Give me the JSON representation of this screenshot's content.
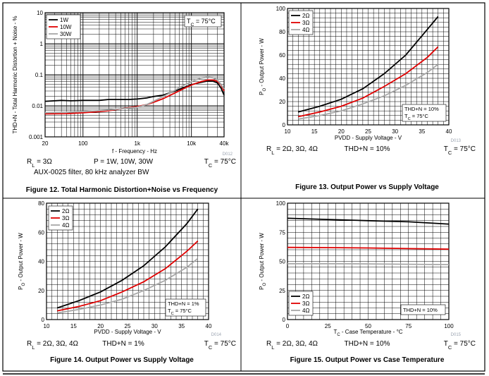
{
  "chart_data": [
    {
      "type": "line",
      "ylabel": "THD+N - Total Harmonic Distortion + Noise - %",
      "xlabel": "f - Frequency - Hz",
      "xscale": "log",
      "yscale": "log",
      "xlim": [
        20,
        40000
      ],
      "ylim": [
        0.001,
        10
      ],
      "xticks": [
        {
          "v": 20,
          "label": "20"
        },
        {
          "v": 100,
          "label": "100"
        },
        {
          "v": 1000,
          "label": "1k"
        },
        {
          "v": 10000,
          "label": "10k"
        },
        {
          "v": 40000,
          "label": "40k"
        }
      ],
      "yticks": [
        {
          "v": 0.001,
          "label": "0.001"
        },
        {
          "v": 0.01,
          "label": "0.01"
        },
        {
          "v": 0.1,
          "label": "0.1"
        },
        {
          "v": 1,
          "label": "1"
        },
        {
          "v": 10,
          "label": "10"
        }
      ],
      "grid": true,
      "legend_position": "top-left",
      "annotation": "TC = 75°C",
      "code": "D012",
      "conditions": {
        "left": "RL = 3Ω",
        "mid": "P = 1W, 10W, 30W",
        "right": "TC = 75°C",
        "line2": "AUX-0025 filter, 80 kHz analyzer BW"
      },
      "caption": "Figure 12. Total Harmonic Distortion+Noise vs Frequency",
      "series": [
        {
          "name": "1W",
          "color": "#000000",
          "points": [
            [
              20,
              0.014
            ],
            [
              40,
              0.015
            ],
            [
              60,
              0.0145
            ],
            [
              100,
              0.015
            ],
            [
              200,
              0.015
            ],
            [
              300,
              0.016
            ],
            [
              500,
              0.016
            ],
            [
              700,
              0.016
            ],
            [
              1000,
              0.0165
            ],
            [
              1500,
              0.018
            ],
            [
              2000,
              0.02
            ],
            [
              3000,
              0.022
            ],
            [
              5000,
              0.03
            ],
            [
              7000,
              0.038
            ],
            [
              10000,
              0.048
            ],
            [
              15000,
              0.057
            ],
            [
              20000,
              0.063
            ],
            [
              25000,
              0.062
            ],
            [
              30000,
              0.055
            ],
            [
              35000,
              0.038
            ],
            [
              40000,
              0.022
            ]
          ]
        },
        {
          "name": "10W",
          "color": "#e00000",
          "points": [
            [
              20,
              0.0055
            ],
            [
              50,
              0.0056
            ],
            [
              100,
              0.006
            ],
            [
              200,
              0.0065
            ],
            [
              300,
              0.007
            ],
            [
              500,
              0.008
            ],
            [
              800,
              0.009
            ],
            [
              1000,
              0.0095
            ],
            [
              1500,
              0.011
            ],
            [
              2000,
              0.013
            ],
            [
              3000,
              0.017
            ],
            [
              5000,
              0.026
            ],
            [
              7000,
              0.035
            ],
            [
              10000,
              0.047
            ],
            [
              15000,
              0.06
            ],
            [
              20000,
              0.068
            ],
            [
              25000,
              0.068
            ],
            [
              30000,
              0.062
            ],
            [
              35000,
              0.048
            ],
            [
              40000,
              0.03
            ]
          ]
        },
        {
          "name": "30W",
          "color": "#a8a8a8",
          "points": [
            [
              20,
              0.006
            ],
            [
              50,
              0.0062
            ],
            [
              100,
              0.0065
            ],
            [
              200,
              0.007
            ],
            [
              500,
              0.008
            ],
            [
              1000,
              0.009
            ],
            [
              1500,
              0.011
            ],
            [
              2000,
              0.014
            ],
            [
              3000,
              0.02
            ],
            [
              5000,
              0.032
            ],
            [
              7000,
              0.045
            ],
            [
              10000,
              0.06
            ],
            [
              15000,
              0.078
            ],
            [
              20000,
              0.085
            ],
            [
              25000,
              0.08
            ],
            [
              30000,
              0.068
            ],
            [
              35000,
              0.05
            ],
            [
              40000,
              0.035
            ]
          ]
        }
      ]
    },
    {
      "type": "line",
      "ylabel": "PO - Output Power - W",
      "xlabel": "PVDD - Supply Voltage - V",
      "xlim": [
        10,
        40
      ],
      "ylim": [
        0,
        100
      ],
      "xticks": [
        10,
        15,
        20,
        25,
        30,
        35,
        40
      ],
      "yticks": [
        0,
        20,
        40,
        60,
        80,
        100
      ],
      "grid": true,
      "legend_position": "top-left",
      "annotation": [
        "THD+N = 10%",
        "TC = 75°C"
      ],
      "code": "D013",
      "conditions": {
        "left": "RL = 2Ω, 3Ω, 4Ω",
        "mid": "THD+N = 10%",
        "right": "TC = 75°C"
      },
      "caption": "Figure 13. Output Power vs Supply Voltage",
      "series": [
        {
          "name": "2Ω",
          "color": "#000000",
          "points": [
            [
              12,
              11
            ],
            [
              16,
              16
            ],
            [
              20,
              22
            ],
            [
              24,
              31
            ],
            [
              28,
              44
            ],
            [
              32,
              60
            ],
            [
              36,
              82
            ],
            [
              38,
              93
            ]
          ]
        },
        {
          "name": "3Ω",
          "color": "#e00000",
          "points": [
            [
              12,
              7
            ],
            [
              16,
              11
            ],
            [
              20,
              16
            ],
            [
              24,
              23
            ],
            [
              28,
              33
            ],
            [
              32,
              44
            ],
            [
              36,
              58
            ],
            [
              38,
              67
            ]
          ]
        },
        {
          "name": "4Ω",
          "color": "#a8a8a8",
          "points": [
            [
              12,
              5
            ],
            [
              16,
              8
            ],
            [
              20,
              12
            ],
            [
              24,
              18
            ],
            [
              28,
              25
            ],
            [
              32,
              34
            ],
            [
              36,
              45
            ],
            [
              38,
              52
            ]
          ]
        }
      ]
    },
    {
      "type": "line",
      "ylabel": "PO - Output Power - W",
      "xlabel": "PVDD - Supply Voltage - V",
      "xlim": [
        10,
        40
      ],
      "ylim": [
        0,
        80
      ],
      "xticks": [
        10,
        15,
        20,
        25,
        30,
        35,
        40
      ],
      "yticks": [
        0,
        20,
        40,
        60,
        80
      ],
      "grid": true,
      "legend_position": "top-left",
      "annotation": [
        "THD+N = 1%",
        "TC = 75°C"
      ],
      "code": "D014",
      "conditions": {
        "left": "RL = 2Ω, 3Ω, 4Ω",
        "mid": "THD+N = 1%",
        "right": "TC = 75°C"
      },
      "caption": "Figure 14. Output Power vs Supply Voltage",
      "series": [
        {
          "name": "2Ω",
          "color": "#000000",
          "points": [
            [
              12,
              8
            ],
            [
              16,
              13
            ],
            [
              20,
              19
            ],
            [
              24,
              27
            ],
            [
              28,
              37
            ],
            [
              32,
              50
            ],
            [
              36,
              66
            ],
            [
              38,
              76
            ]
          ]
        },
        {
          "name": "3Ω",
          "color": "#e00000",
          "points": [
            [
              12,
              6
            ],
            [
              16,
              9
            ],
            [
              20,
              13
            ],
            [
              24,
              19
            ],
            [
              28,
              26
            ],
            [
              32,
              35
            ],
            [
              36,
              47
            ],
            [
              38,
              54
            ]
          ]
        },
        {
          "name": "4Ω",
          "color": "#a8a8a8",
          "points": [
            [
              12,
              4.5
            ],
            [
              16,
              7
            ],
            [
              20,
              10
            ],
            [
              24,
              14
            ],
            [
              28,
              20
            ],
            [
              32,
              27
            ],
            [
              36,
              36
            ],
            [
              38,
              42
            ]
          ]
        }
      ]
    },
    {
      "type": "line",
      "ylabel": "PO - Output Power - W",
      "xlabel": "TC - Case Temperature - °C",
      "xlim": [
        0,
        100
      ],
      "ylim": [
        0,
        100
      ],
      "xticks": [
        0,
        25,
        50,
        75,
        100
      ],
      "yticks": [
        0,
        25,
        50,
        75,
        100
      ],
      "grid": true,
      "legend_position": "bottom-left",
      "annotation": [
        "THD+N = 10%"
      ],
      "code": "D015",
      "conditions": {
        "left": "RL = 2Ω, 3Ω, 4Ω",
        "mid": "THD+N = 10%",
        "right": "TC = 75°C"
      },
      "caption": "Figure 15. Output Power vs Case Temperature",
      "series": [
        {
          "name": "2Ω",
          "color": "#000000",
          "points": [
            [
              0,
              87
            ],
            [
              25,
              86
            ],
            [
              50,
              85
            ],
            [
              75,
              84
            ],
            [
              100,
              82
            ]
          ]
        },
        {
          "name": "3Ω",
          "color": "#e00000",
          "points": [
            [
              0,
              62
            ],
            [
              25,
              61.8
            ],
            [
              50,
              61.5
            ],
            [
              75,
              61
            ],
            [
              100,
              60.5
            ]
          ]
        },
        {
          "name": "4Ω",
          "color": "#a8a8a8",
          "points": [
            [
              0,
              48
            ],
            [
              25,
              48
            ],
            [
              50,
              47.8
            ],
            [
              75,
              47.5
            ],
            [
              100,
              47.2
            ]
          ]
        }
      ]
    }
  ]
}
